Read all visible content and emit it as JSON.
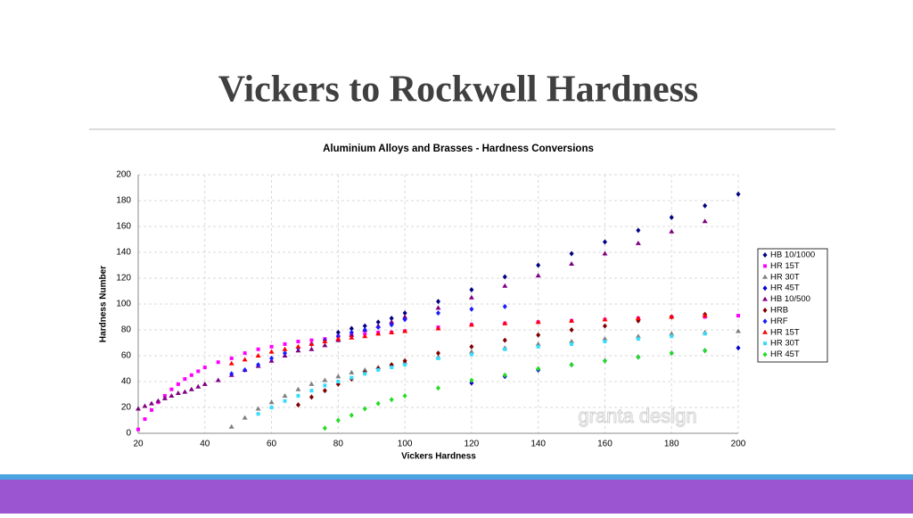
{
  "slide_title": "Vickers to Rockwell Hardness",
  "chart_data": {
    "type": "scatter",
    "title": "Aluminium Alloys and Brasses - Hardness Conversions",
    "x_label": "Vickers Hardness",
    "y_label": "Hardness Number",
    "watermark": "granta design",
    "xlim": [
      20,
      200
    ],
    "ylim": [
      0,
      200
    ],
    "xticks": [
      20,
      40,
      60,
      80,
      100,
      120,
      140,
      160,
      180,
      200
    ],
    "yticks": [
      0,
      20,
      40,
      60,
      80,
      100,
      120,
      140,
      160,
      180,
      200
    ],
    "grid": true,
    "series": [
      {
        "name": "HB 10/1000",
        "color": "#000080",
        "marker": "diamond",
        "x": [
          80,
          84,
          88,
          92,
          96,
          100,
          110,
          120,
          130,
          140,
          150,
          160,
          170,
          180,
          190,
          200
        ],
        "values": [
          78,
          81,
          83,
          86,
          89,
          93,
          102,
          111,
          121,
          130,
          139,
          148,
          157,
          167,
          176,
          185
        ]
      },
      {
        "name": "HR 15T",
        "color": "#ff00ff",
        "marker": "square",
        "x": [
          20,
          22,
          24,
          26,
          28,
          30,
          32,
          34,
          36,
          38,
          40,
          44,
          48,
          52,
          56,
          60,
          64,
          68,
          72,
          76,
          80,
          84,
          88,
          92,
          96,
          100,
          110,
          120,
          130,
          140,
          150,
          160,
          170,
          180,
          190,
          200
        ],
        "values": [
          3,
          11,
          18,
          24,
          29,
          34,
          38,
          42,
          45,
          48,
          51,
          55,
          58,
          62,
          65,
          67,
          69,
          71,
          72,
          73,
          75,
          76,
          77,
          78,
          78,
          79,
          82,
          84,
          85,
          86,
          87,
          88,
          89,
          90,
          90,
          91
        ]
      },
      {
        "name": "HR 30T",
        "color": "#808080",
        "marker": "triangle",
        "x": [
          48,
          52,
          56,
          60,
          64,
          68,
          72,
          76,
          80,
          84,
          88,
          92,
          96,
          100,
          110,
          120,
          130,
          140,
          150,
          160,
          170,
          180,
          190,
          200
        ],
        "values": [
          5,
          12,
          19,
          24,
          29,
          34,
          38,
          41,
          44,
          47,
          49,
          51,
          53,
          55,
          59,
          63,
          66,
          69,
          71,
          73,
          75,
          77,
          78,
          79
        ]
      },
      {
        "name": "HR 45T",
        "color": "#0000cc",
        "marker": "diamond",
        "x": [
          120,
          130,
          140,
          150,
          160,
          170,
          180,
          190,
          200
        ],
        "values": [
          39,
          44,
          49,
          53,
          56,
          59,
          62,
          64,
          66
        ]
      },
      {
        "name": "HB 10/500",
        "color": "#800080",
        "marker": "triangle",
        "x": [
          20,
          22,
          24,
          26,
          28,
          30,
          32,
          34,
          36,
          38,
          40,
          44,
          48,
          52,
          56,
          60,
          64,
          68,
          72,
          76,
          80,
          84,
          88,
          92,
          96,
          100,
          110,
          120,
          130,
          140,
          150,
          160,
          170,
          180,
          190
        ],
        "values": [
          19,
          21,
          23,
          25,
          27,
          29,
          31,
          32,
          34,
          36,
          38,
          41,
          45,
          49,
          52,
          56,
          60,
          64,
          65,
          68,
          72,
          76,
          80,
          83,
          86,
          90,
          97,
          105,
          114,
          122,
          131,
          139,
          147,
          156,
          164
        ]
      },
      {
        "name": "HRB",
        "color": "#800000",
        "marker": "diamond",
        "x": [
          68,
          72,
          76,
          80,
          84,
          88,
          92,
          96,
          100,
          110,
          120,
          130,
          140,
          150,
          160,
          170,
          180,
          190
        ],
        "values": [
          22,
          28,
          33,
          38,
          42,
          47,
          50,
          53,
          56,
          62,
          67,
          72,
          76,
          80,
          83,
          87,
          90,
          92
        ]
      },
      {
        "name": "HRF",
        "color": "#1a1aff",
        "marker": "diamond",
        "x": [
          48,
          52,
          56,
          60,
          64,
          68,
          72,
          76,
          80,
          84,
          88,
          92,
          96,
          100,
          110,
          120,
          130
        ],
        "values": [
          46,
          49,
          53,
          58,
          62,
          66,
          69,
          72,
          75,
          78,
          80,
          82,
          84,
          88,
          93,
          96,
          98
        ]
      },
      {
        "name": "HR 15T",
        "color": "#ff0000",
        "marker": "triangle",
        "x": [
          48,
          52,
          56,
          60,
          64,
          68,
          72,
          76,
          80,
          84,
          88,
          92,
          96,
          100,
          110,
          120,
          130,
          140,
          150,
          160,
          170,
          180,
          190
        ],
        "values": [
          54,
          57,
          60,
          63,
          65,
          67,
          69,
          71,
          73,
          74,
          75,
          77,
          78,
          79,
          81,
          84,
          85,
          86,
          87,
          88,
          89,
          90,
          91
        ]
      },
      {
        "name": "HR 30T",
        "color": "#33ddff",
        "marker": "square",
        "x": [
          56,
          60,
          64,
          68,
          72,
          76,
          80,
          84,
          88,
          92,
          96,
          100,
          110,
          120,
          130,
          140,
          150,
          160,
          170,
          180,
          190
        ],
        "values": [
          15,
          20,
          25,
          29,
          33,
          37,
          40,
          43,
          46,
          49,
          51,
          53,
          58,
          61,
          65,
          67,
          69,
          71,
          73,
          75,
          77
        ]
      },
      {
        "name": "HR 45T",
        "color": "#22dd22",
        "marker": "diamond",
        "x": [
          76,
          80,
          84,
          88,
          92,
          96,
          100,
          110,
          120,
          130,
          140,
          150,
          160,
          170,
          180,
          190
        ],
        "values": [
          4,
          10,
          14,
          19,
          23,
          26,
          29,
          35,
          41,
          45,
          50,
          53,
          56,
          59,
          62,
          64
        ]
      }
    ]
  }
}
